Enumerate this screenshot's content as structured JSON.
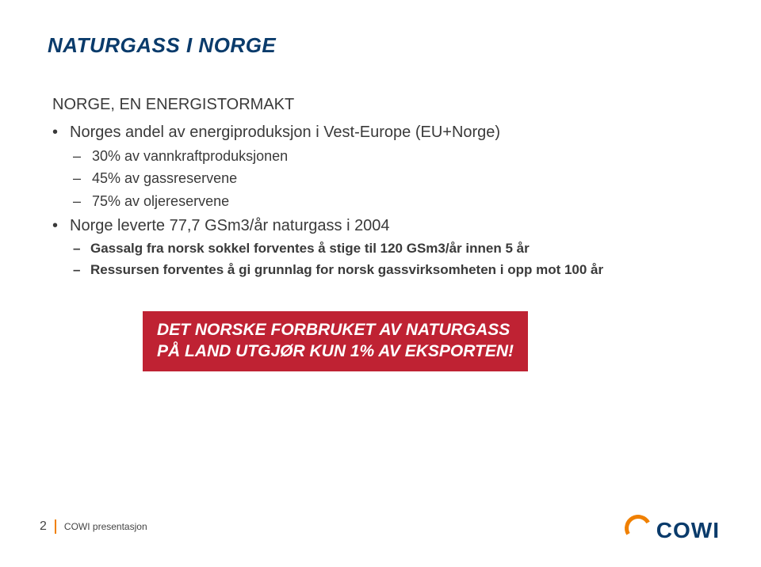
{
  "colors": {
    "title": "#0a3b6b",
    "body_text": "#3a3a3a",
    "callout_bg": "#bf2233",
    "callout_text": "#ffffff",
    "footer_sep": "#f08000",
    "footer_text": "#444444",
    "logo_arc": "#f08000",
    "logo_text": "#0a3b6b"
  },
  "title": "NATURGASS I NORGE",
  "subtitle": "NORGE, EN ENERGISTORMAKT",
  "bullets": [
    {
      "text": "Norges andel av energiproduksjon i Vest-Europe (EU+Norge)",
      "children": [
        {
          "text": "30% av vannkraftproduksjonen"
        },
        {
          "text": "45% av gassreservene"
        },
        {
          "text": "75% av oljereservene"
        }
      ]
    },
    {
      "text": "Norge leverte 77,7 GSm3/år naturgass i 2004",
      "children": [
        {
          "text": "Gassalg fra norsk sokkel forventes å stige til 120 GSm3/år innen 5 år",
          "bold": true
        },
        {
          "text": "Ressursen forventes å gi grunnlag for norsk gassvirksomheten i opp mot 100 år",
          "bold": true
        }
      ]
    }
  ],
  "callout": {
    "line1": "DET NORSKE FORBRUKET AV NATURGASS",
    "line2": "PÅ LAND UTGJØR KUN 1% AV EKSPORTEN!"
  },
  "footer": {
    "page_number": "2",
    "label": "COWI presentasjon"
  },
  "logo": {
    "text": "COWI"
  }
}
